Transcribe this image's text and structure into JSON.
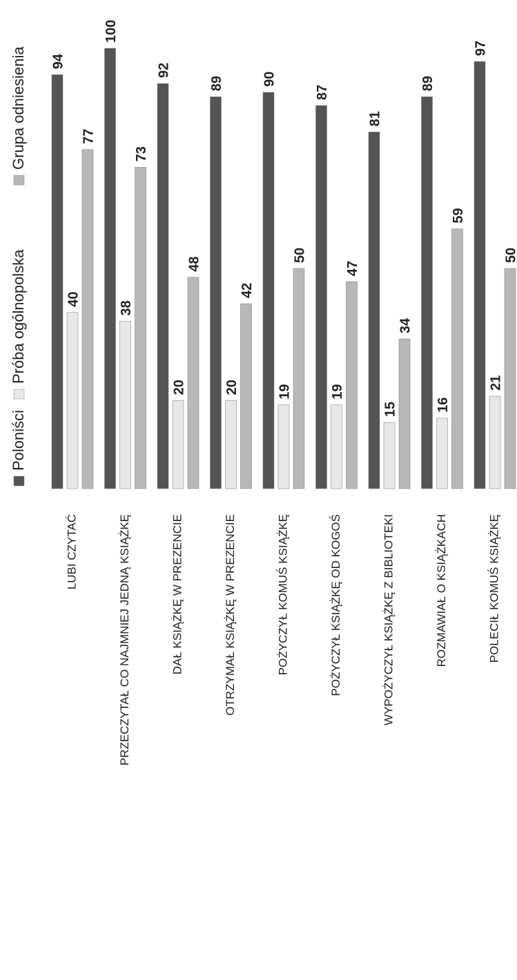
{
  "chart_data": {
    "type": "bar",
    "categories": [
      "LUBI CZYTAĆ",
      "PRZECZYTAŁ CO NAJMNIEJ JEDNĄ KSIĄŻKĘ",
      "DAŁ KSIĄŻKĘ W PREZENCIE",
      "OTRZYMAŁ KSIĄŻKĘ W PREZENCIE",
      "POŻYCZYŁ KOMUŚ KSIĄŻKĘ",
      "POŻYCZYŁ KSIĄŻKĘ OD KOGOŚ",
      "WYPOŻYCZYŁ KSIĄŻKĘ Z BIBLIOTEKI",
      "ROZMAWIAŁ O KSIĄŻKACH",
      "POLECIŁ KOMUŚ KSIĄŻKĘ"
    ],
    "series": [
      {
        "name": "Poloniści",
        "color": "#545454",
        "values": [
          94,
          100,
          92,
          89,
          90,
          87,
          81,
          89,
          97
        ]
      },
      {
        "name": "Próba ogólnopolska",
        "color": "#e8e8e8",
        "values": [
          40,
          38,
          20,
          20,
          19,
          19,
          15,
          16,
          21
        ]
      },
      {
        "name": "Grupa odniesienia",
        "color": "#b8b8b8",
        "values": [
          77,
          73,
          48,
          42,
          50,
          47,
          34,
          59,
          50
        ]
      }
    ],
    "ylim": [
      0,
      100
    ]
  }
}
